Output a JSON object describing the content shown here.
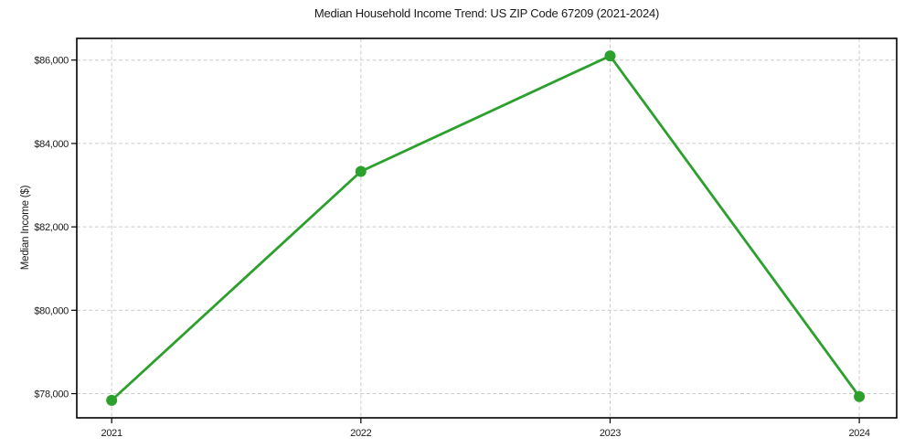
{
  "chart_data": {
    "type": "line",
    "title": "Median Household Income Trend: US ZIP Code 67209 (2021-2024)",
    "xlabel": "",
    "ylabel": "Median Income ($)",
    "x": [
      2021,
      2022,
      2023,
      2024
    ],
    "series": [
      {
        "name": "Median Household Income",
        "values": [
          77840,
          83330,
          86100,
          77930
        ]
      }
    ],
    "xtick_labels": [
      "2021",
      "2022",
      "2023",
      "2024"
    ],
    "yticks": [
      78000,
      80000,
      82000,
      84000,
      86000
    ],
    "ytick_labels": [
      "$78,000",
      "$80,000",
      "$82,000",
      "$84,000",
      "$86,000"
    ],
    "xlim": [
      2020.86,
      2024.15
    ],
    "ylim": [
      77420,
      86520
    ],
    "grid": true,
    "grid_style": "dashed",
    "legend": "none",
    "colors": {
      "line": "#2ca02c",
      "marker": "#2ca02c",
      "grid": "#cccccc",
      "border": "#000000",
      "text": "#1a1a1a",
      "background": "#ffffff"
    }
  }
}
